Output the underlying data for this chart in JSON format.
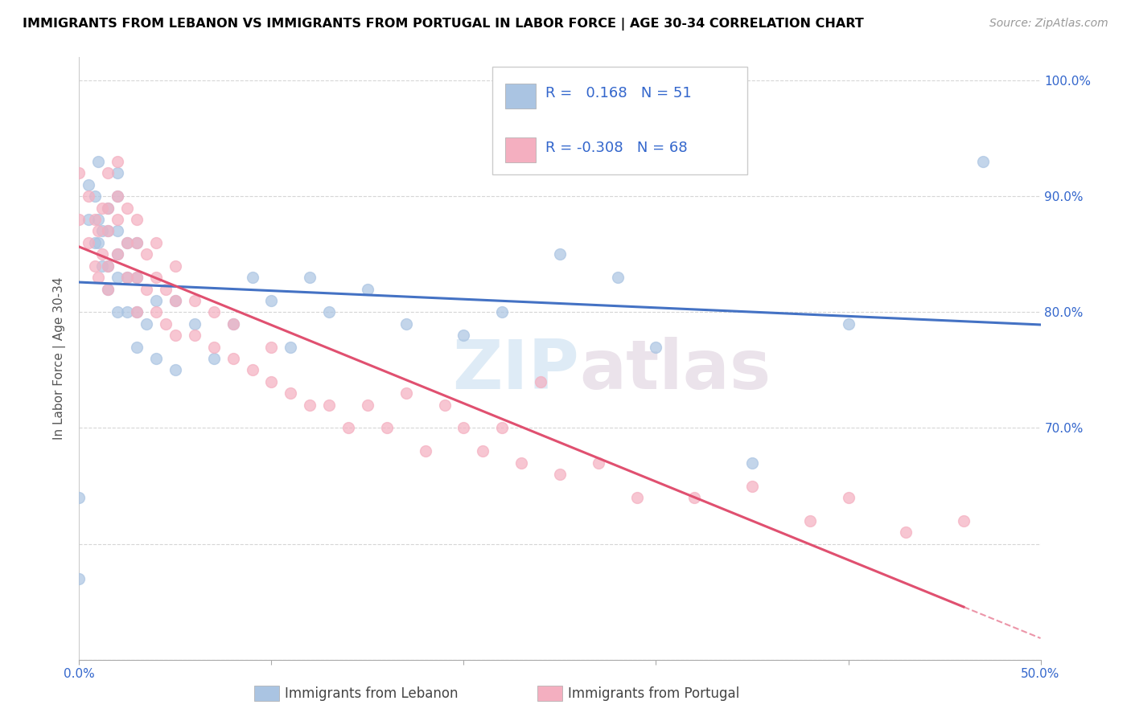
{
  "title": "IMMIGRANTS FROM LEBANON VS IMMIGRANTS FROM PORTUGAL IN LABOR FORCE | AGE 30-34 CORRELATION CHART",
  "source": "Source: ZipAtlas.com",
  "ylabel": "In Labor Force | Age 30-34",
  "xlim": [
    0.0,
    0.5
  ],
  "ylim": [
    0.5,
    1.02
  ],
  "r_lebanon": 0.168,
  "n_lebanon": 51,
  "r_portugal": -0.308,
  "n_portugal": 68,
  "color_lebanon": "#aac4e2",
  "color_portugal": "#f4afc0",
  "trendline_lebanon": "#4472c4",
  "trendline_portugal": "#e05070",
  "watermark_zip": "ZIP",
  "watermark_atlas": "atlas",
  "lebanon_x": [
    0.0,
    0.0,
    0.005,
    0.005,
    0.008,
    0.008,
    0.01,
    0.01,
    0.01,
    0.012,
    0.012,
    0.015,
    0.015,
    0.015,
    0.015,
    0.02,
    0.02,
    0.02,
    0.02,
    0.02,
    0.02,
    0.025,
    0.025,
    0.025,
    0.03,
    0.03,
    0.03,
    0.03,
    0.035,
    0.04,
    0.04,
    0.05,
    0.05,
    0.06,
    0.07,
    0.08,
    0.09,
    0.1,
    0.11,
    0.12,
    0.13,
    0.15,
    0.17,
    0.2,
    0.22,
    0.25,
    0.28,
    0.3,
    0.35,
    0.4,
    0.47
  ],
  "lebanon_y": [
    0.57,
    0.64,
    0.88,
    0.91,
    0.86,
    0.9,
    0.86,
    0.88,
    0.93,
    0.84,
    0.87,
    0.82,
    0.84,
    0.87,
    0.89,
    0.8,
    0.83,
    0.85,
    0.87,
    0.9,
    0.92,
    0.8,
    0.83,
    0.86,
    0.77,
    0.8,
    0.83,
    0.86,
    0.79,
    0.76,
    0.81,
    0.75,
    0.81,
    0.79,
    0.76,
    0.79,
    0.83,
    0.81,
    0.77,
    0.83,
    0.8,
    0.82,
    0.79,
    0.78,
    0.8,
    0.85,
    0.83,
    0.77,
    0.67,
    0.79,
    0.93
  ],
  "portugal_x": [
    0.0,
    0.0,
    0.005,
    0.005,
    0.008,
    0.008,
    0.01,
    0.01,
    0.012,
    0.012,
    0.015,
    0.015,
    0.015,
    0.015,
    0.015,
    0.02,
    0.02,
    0.02,
    0.02,
    0.025,
    0.025,
    0.025,
    0.03,
    0.03,
    0.03,
    0.03,
    0.035,
    0.035,
    0.04,
    0.04,
    0.04,
    0.045,
    0.045,
    0.05,
    0.05,
    0.05,
    0.06,
    0.06,
    0.07,
    0.07,
    0.08,
    0.08,
    0.09,
    0.1,
    0.1,
    0.11,
    0.12,
    0.13,
    0.14,
    0.15,
    0.16,
    0.17,
    0.18,
    0.19,
    0.2,
    0.21,
    0.22,
    0.23,
    0.24,
    0.25,
    0.27,
    0.29,
    0.32,
    0.35,
    0.38,
    0.4,
    0.43,
    0.46
  ],
  "portugal_y": [
    0.88,
    0.92,
    0.86,
    0.9,
    0.84,
    0.88,
    0.83,
    0.87,
    0.85,
    0.89,
    0.82,
    0.84,
    0.87,
    0.89,
    0.92,
    0.85,
    0.88,
    0.9,
    0.93,
    0.83,
    0.86,
    0.89,
    0.8,
    0.83,
    0.86,
    0.88,
    0.82,
    0.85,
    0.8,
    0.83,
    0.86,
    0.79,
    0.82,
    0.78,
    0.81,
    0.84,
    0.78,
    0.81,
    0.77,
    0.8,
    0.76,
    0.79,
    0.75,
    0.74,
    0.77,
    0.73,
    0.72,
    0.72,
    0.7,
    0.72,
    0.7,
    0.73,
    0.68,
    0.72,
    0.7,
    0.68,
    0.7,
    0.67,
    0.74,
    0.66,
    0.67,
    0.64,
    0.64,
    0.65,
    0.62,
    0.64,
    0.61,
    0.62
  ]
}
